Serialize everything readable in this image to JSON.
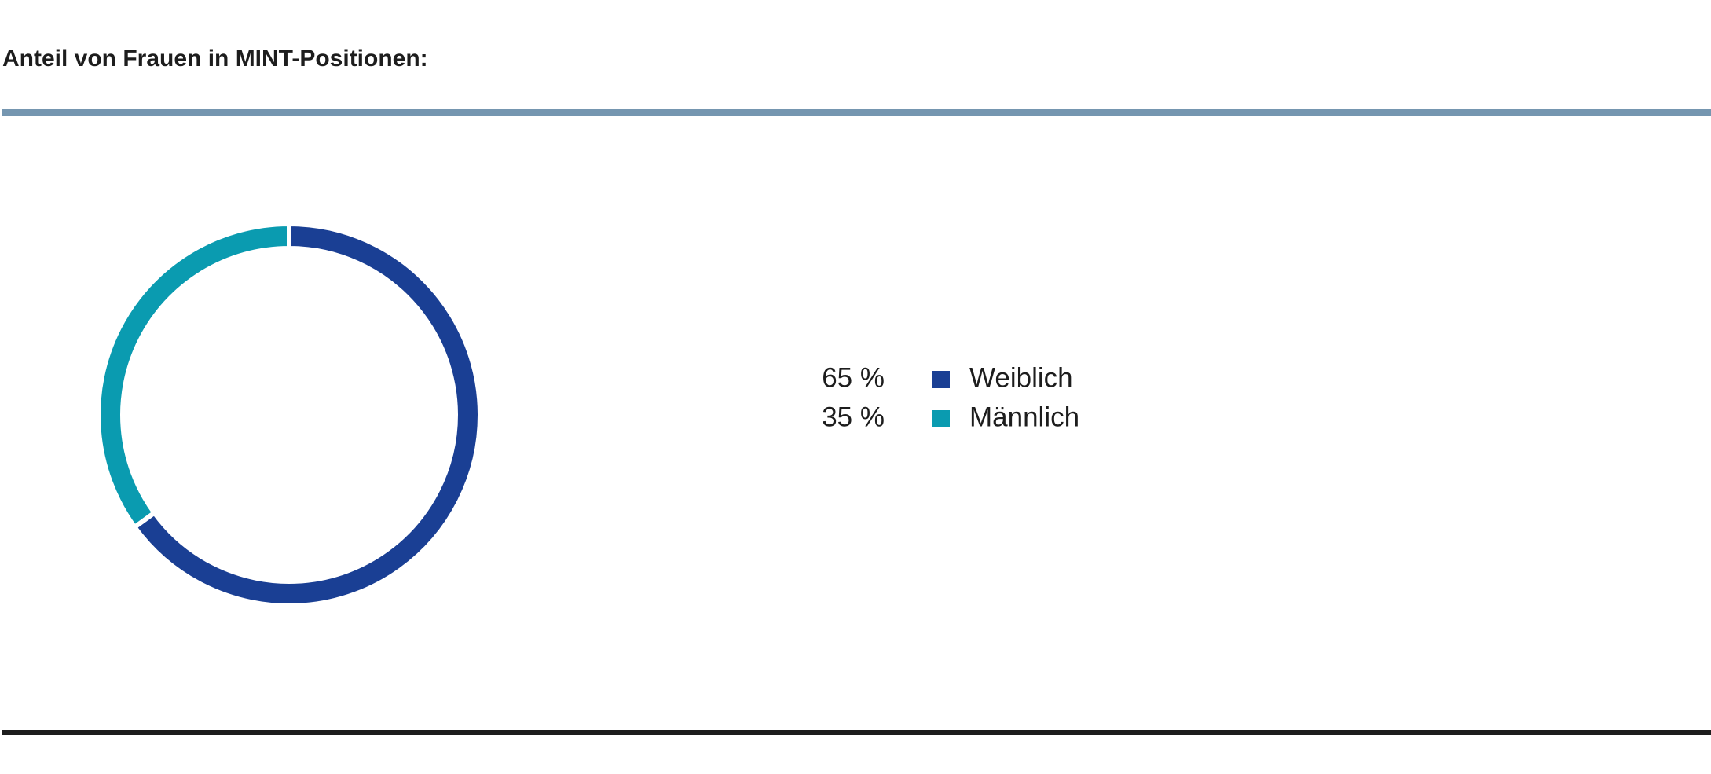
{
  "chart_data": {
    "type": "pie",
    "title": "Anteil von Frauen in MINT-Positionen:",
    "categories": [
      "Weiblich",
      "Männlich"
    ],
    "values": [
      65,
      35
    ],
    "value_labels": [
      "65 %",
      "35 %"
    ],
    "colors": [
      "#1a3f94",
      "#0a9bb0"
    ],
    "donut": true
  }
}
